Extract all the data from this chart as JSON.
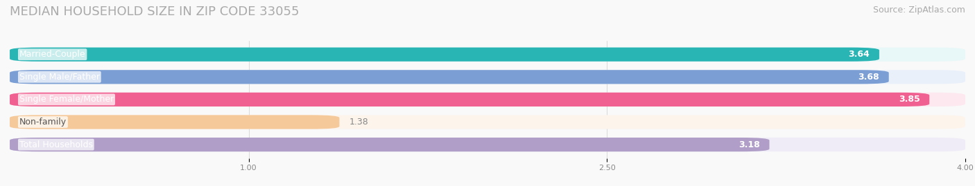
{
  "title": "MEDIAN HOUSEHOLD SIZE IN ZIP CODE 33055",
  "source": "Source: ZipAtlas.com",
  "categories": [
    "Married-Couple",
    "Single Male/Father",
    "Single Female/Mother",
    "Non-family",
    "Total Households"
  ],
  "values": [
    3.64,
    3.68,
    3.85,
    1.38,
    3.18
  ],
  "bar_colors": [
    "#2ab5b5",
    "#7b9fd4",
    "#f06090",
    "#f5c99a",
    "#b09ec8"
  ],
  "bar_bg_colors": [
    "#e8f7f7",
    "#eaf0f9",
    "#fde8ef",
    "#fdf4ec",
    "#f0ecf7"
  ],
  "xlim": [
    0,
    4.0
  ],
  "xticks": [
    1.0,
    2.5,
    4.0
  ],
  "title_fontsize": 13,
  "source_fontsize": 9,
  "label_fontsize": 9,
  "value_fontsize": 9,
  "background_color": "#f9f9f9"
}
